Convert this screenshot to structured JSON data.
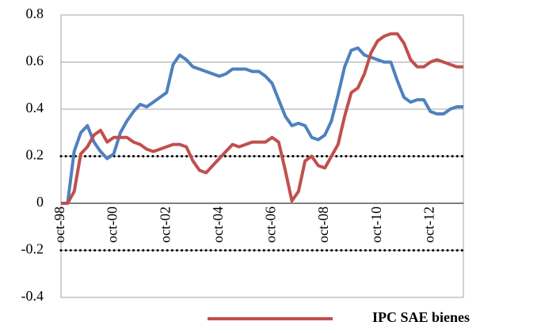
{
  "chart_data": {
    "type": "line",
    "categories": [
      "oct-98",
      null,
      null,
      null,
      null,
      null,
      null,
      null,
      "oct-00",
      null,
      null,
      null,
      null,
      null,
      null,
      null,
      "oct-02",
      null,
      null,
      null,
      null,
      null,
      null,
      null,
      "oct-04",
      null,
      null,
      null,
      null,
      null,
      null,
      null,
      "oct-06",
      null,
      null,
      null,
      null,
      null,
      null,
      null,
      "oct-08",
      null,
      null,
      null,
      null,
      null,
      null,
      null,
      "oct-10",
      null,
      null,
      null,
      null,
      null,
      null,
      null,
      "oct-12",
      null,
      null,
      null,
      null,
      null
    ],
    "series": [
      {
        "color": "#4f81bd",
        "values": [
          0,
          0,
          0.22,
          0.3,
          0.33,
          0.26,
          0.22,
          0.19,
          0.21,
          0.3,
          0.35,
          0.39,
          0.42,
          0.41,
          0.43,
          0.45,
          0.47,
          0.59,
          0.63,
          0.61,
          0.58,
          0.57,
          0.56,
          0.55,
          0.54,
          0.55,
          0.57,
          0.57,
          0.57,
          0.56,
          0.56,
          0.54,
          0.51,
          0.44,
          0.37,
          0.33,
          0.34,
          0.33,
          0.28,
          0.27,
          0.29,
          0.35,
          0.46,
          0.58,
          0.65,
          0.66,
          0.63,
          0.62,
          0.61,
          0.6,
          0.6,
          0.52,
          0.45,
          0.43,
          0.44,
          0.44,
          0.39,
          0.38,
          0.38,
          0.4,
          0.41,
          0.41
        ]
      },
      {
        "name": "IPC SAE bienes",
        "color": "#c0504d",
        "values": [
          0,
          0,
          0.05,
          0.21,
          0.24,
          0.29,
          0.31,
          0.26,
          0.28,
          0.28,
          0.28,
          0.26,
          0.25,
          0.23,
          0.22,
          0.23,
          0.24,
          0.25,
          0.25,
          0.24,
          0.18,
          0.14,
          0.13,
          0.16,
          0.19,
          0.22,
          0.25,
          0.24,
          0.25,
          0.26,
          0.26,
          0.26,
          0.28,
          0.26,
          0.14,
          0.01,
          0.05,
          0.18,
          0.2,
          0.16,
          0.15,
          0.2,
          0.25,
          0.37,
          0.47,
          0.49,
          0.55,
          0.64,
          0.69,
          0.71,
          0.72,
          0.72,
          0.68,
          0.61,
          0.58,
          0.58,
          0.6,
          0.61,
          0.6,
          0.59,
          0.58,
          0.58
        ]
      }
    ],
    "ylim": [
      -0.4,
      0.8
    ],
    "yticks": [
      -0.4,
      -0.2,
      0,
      0.2,
      0.4,
      0.6,
      0.8
    ],
    "grid": true,
    "reference_lines": [
      0.2,
      -0.2
    ]
  }
}
